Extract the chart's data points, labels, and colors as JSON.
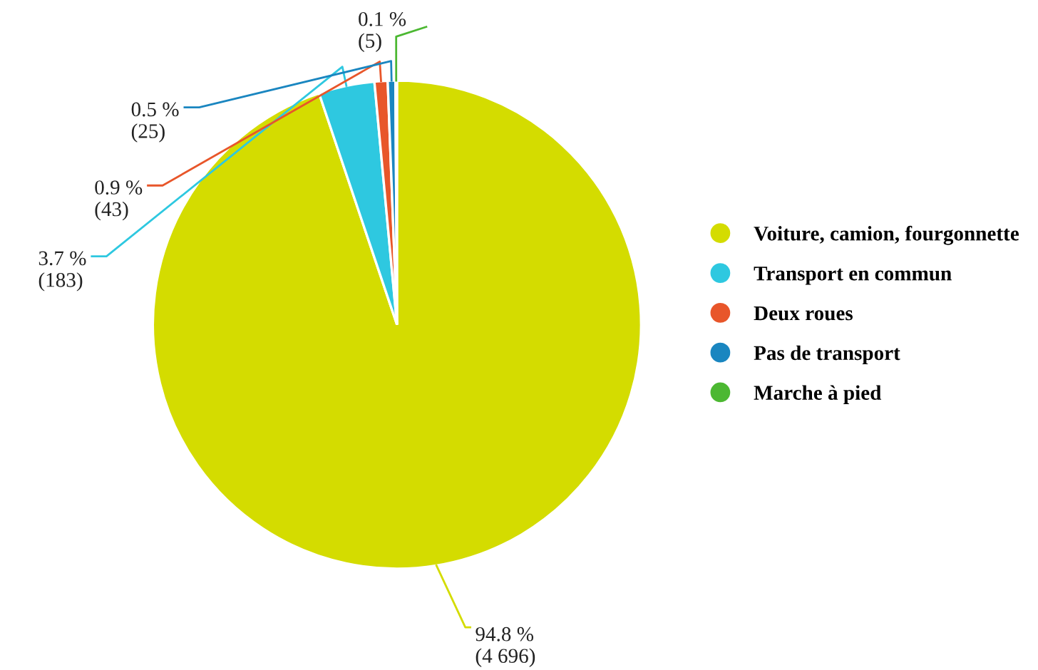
{
  "chart_data": {
    "type": "pie",
    "categories": [
      "Voiture, camion, fourgonnette",
      "Transport en commun",
      "Deux roues",
      "Pas de transport",
      "Marche à pied"
    ],
    "values": [
      4696,
      183,
      43,
      25,
      5
    ],
    "value_labels": [
      "94.8 %\n(4 696)",
      "3.7 %\n(183)",
      "0.9 %\n(43)",
      "0.5 %\n(25)",
      "0.1 %\n(5)"
    ],
    "colors": [
      "#d4dc00",
      "#2ec8e0",
      "#e8562a",
      "#1a86c0",
      "#4cb832"
    ],
    "legend": "right"
  }
}
